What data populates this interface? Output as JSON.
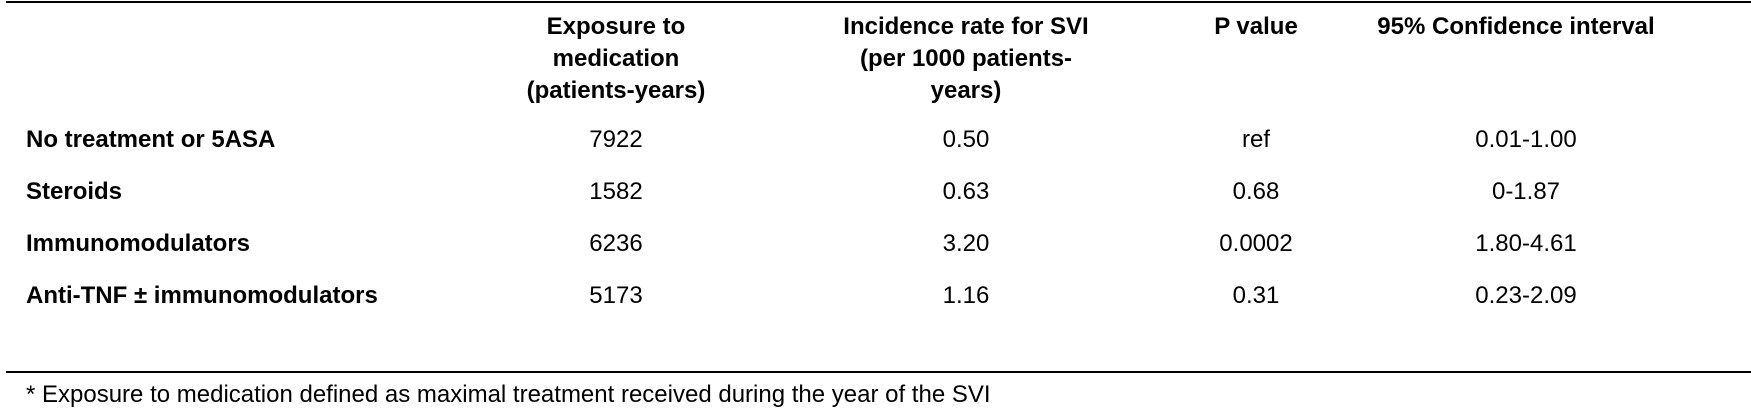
{
  "table": {
    "headers": [
      "",
      "Exposure to\nmedication\n(patients-years)",
      "Incidence rate for SVI\n(per 1000 patients-\nyears)",
      "P value",
      "95% Confidence interval"
    ],
    "rows": [
      {
        "name": "No treatment or 5ASA",
        "exposure": "7922",
        "incidence": "0.50",
        "p_value": "ref",
        "ci": "0.01-1.00"
      },
      {
        "name": "Steroids",
        "exposure": "1582",
        "incidence": "0.63",
        "p_value": "0.68",
        "ci": "0-1.87"
      },
      {
        "name": "Immunomodulators",
        "exposure": "6236",
        "incidence": "3.20",
        "p_value": "0.0002",
        "ci": "1.80-4.61"
      },
      {
        "name": "Anti-TNF ± immunomodulators",
        "exposure": "5173",
        "incidence": "1.16",
        "p_value": "0.31",
        "ci": "0.23-2.09"
      }
    ]
  },
  "footnote": "* Exposure to medication defined as maximal treatment received during the year of the SVI"
}
